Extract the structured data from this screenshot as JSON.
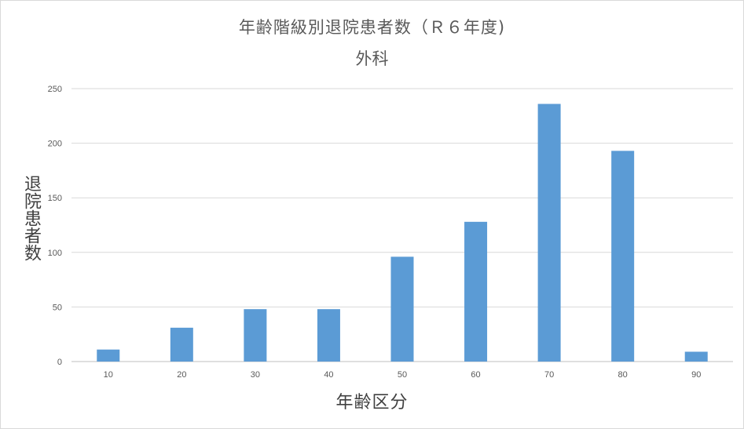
{
  "chart_data": {
    "type": "bar",
    "title": "年齢階級別退院患者数（Ｒ６年度)",
    "subtitle": "外科",
    "xlabel": "年齢区分",
    "ylabel": "退院患者数",
    "categories": [
      "10",
      "20",
      "30",
      "40",
      "50",
      "60",
      "70",
      "80",
      "90"
    ],
    "values": [
      11,
      31,
      48,
      48,
      96,
      128,
      236,
      193,
      9
    ],
    "ylim": [
      0,
      250
    ],
    "yticks": [
      0,
      50,
      100,
      150,
      200,
      250
    ],
    "grid": true,
    "legend": "none",
    "bar_color": "#5b9bd5",
    "grid_color": "#d9d9d9"
  }
}
